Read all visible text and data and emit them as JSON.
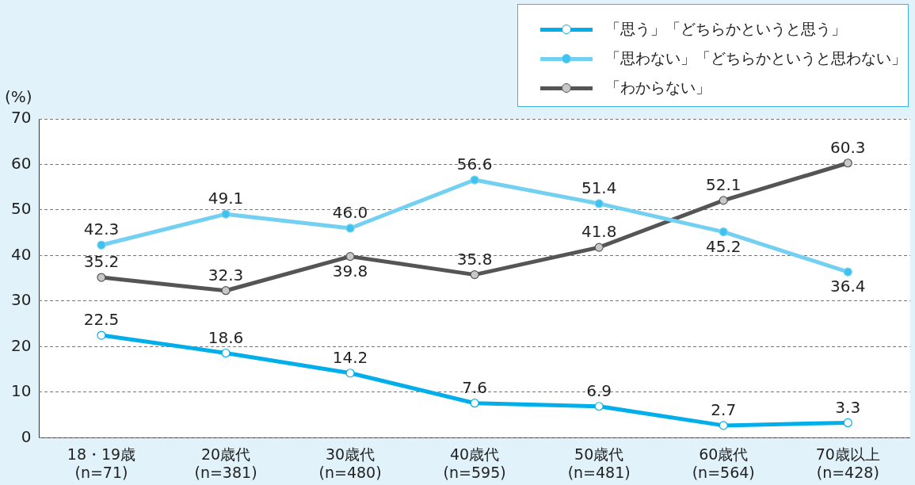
{
  "chart_data": {
    "type": "line",
    "categories": [
      "18・19歳\n(n=71)",
      "20歳代\n(n=381)",
      "30歳代\n(n=480)",
      "40歳代\n(n=595)",
      "50歳代\n(n=481)",
      "60歳代\n(n=564)",
      "70歳以上\n(n=428)"
    ],
    "series": [
      {
        "name": "「思う」「どちらかというと思う」",
        "color": "#00aeea",
        "values": [
          22.5,
          18.6,
          14.2,
          7.6,
          6.9,
          2.7,
          3.3
        ],
        "value_labels": [
          "22.5",
          "18.6",
          "14.2",
          "7.6",
          "6.9",
          "2.7",
          "3.3"
        ]
      },
      {
        "name": "「思わない」「どちらかというと思わない」",
        "color": "#74d0f1",
        "values": [
          42.3,
          49.1,
          46.0,
          56.6,
          51.4,
          45.2,
          36.4
        ],
        "value_labels": [
          "42.3",
          "49.1",
          "46.0",
          "56.6",
          "51.4",
          "45.2",
          "36.4"
        ]
      },
      {
        "name": "「わからない」",
        "color": "#555555",
        "values": [
          35.2,
          32.3,
          39.8,
          35.8,
          41.8,
          52.1,
          60.3
        ],
        "value_labels": [
          "35.2",
          "32.3",
          "39.8",
          "35.8",
          "41.8",
          "52.1",
          "60.3"
        ]
      }
    ],
    "ylabel": "(%)",
    "ylim": [
      0,
      70
    ],
    "yticks": [
      0,
      10,
      20,
      30,
      40,
      50,
      60,
      70
    ],
    "grid": "y",
    "legend": "top right",
    "marker": "circle",
    "line_style": "solid"
  }
}
